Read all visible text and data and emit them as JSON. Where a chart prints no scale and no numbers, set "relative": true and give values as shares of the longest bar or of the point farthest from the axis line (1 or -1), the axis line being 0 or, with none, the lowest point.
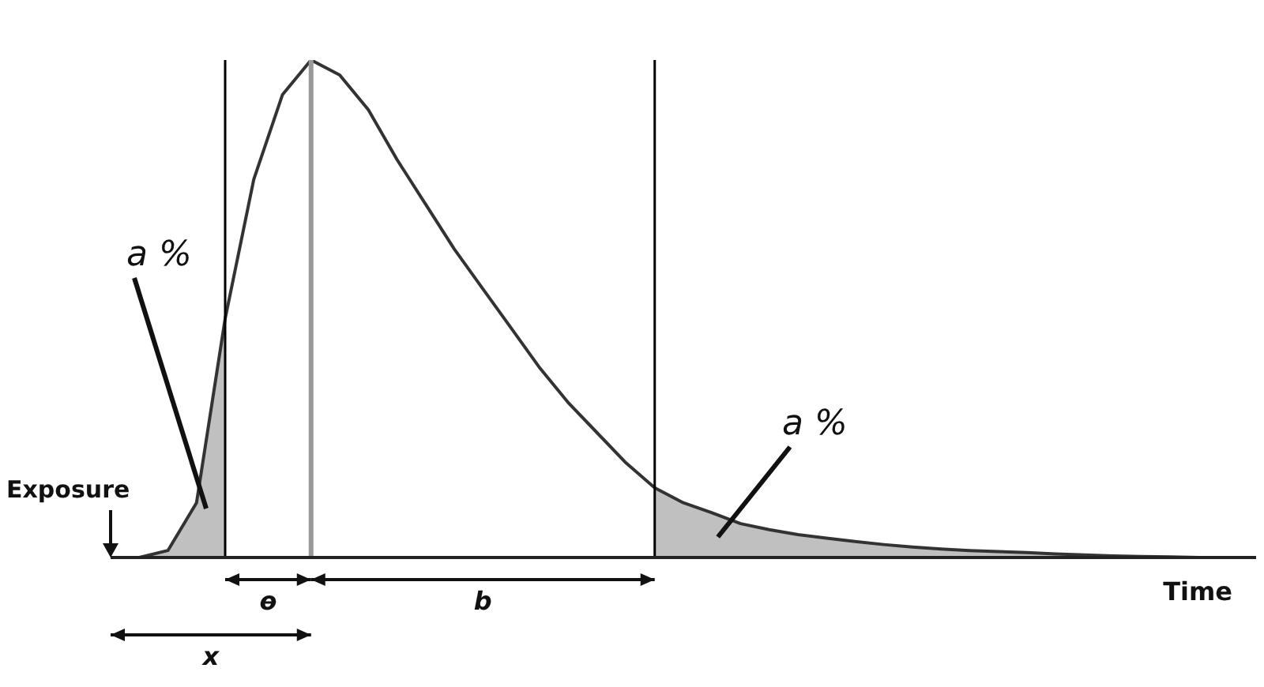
{
  "chart_data": {
    "type": "line",
    "relative": true,
    "xlabel": "Time",
    "grid": false,
    "legend": false,
    "categories": [
      null,
      null,
      null,
      null,
      null,
      null,
      null,
      null,
      null,
      null,
      null,
      null,
      null,
      null,
      null,
      null,
      null,
      null,
      null,
      null,
      null,
      null,
      null,
      null,
      null,
      null,
      null,
      null,
      null,
      null,
      null,
      null,
      null,
      null,
      null,
      null,
      null,
      null,
      null,
      null,
      null
    ],
    "series": [
      {
        "type": "line",
        "color": "#333333",
        "values": [
          0,
          0,
          0.014,
          0.11,
          0.48,
          0.76,
          0.93,
          1,
          0.97,
          0.9,
          0.8,
          0.71,
          0.62,
          0.54,
          0.46,
          0.38,
          0.31,
          0.25,
          0.19,
          0.14,
          0.11,
          0.09,
          0.068,
          0.056,
          0.046,
          0.039,
          0.032,
          0.026,
          0.021,
          0.017,
          0.014,
          0.012,
          0.01,
          0.007,
          0.005,
          0.003,
          0.002,
          0.001,
          0,
          0,
          0
        ]
      },
      {
        "type": "area",
        "color": "#c0c0c0",
        "values": [
          0,
          0,
          0.014,
          0.11,
          0.48,
          null,
          null,
          null,
          null,
          null,
          null,
          null,
          null,
          null,
          null,
          null,
          null,
          null,
          null,
          null,
          null,
          null,
          null,
          null,
          null,
          null,
          null,
          null,
          null,
          null,
          null,
          null,
          null,
          null,
          null,
          null,
          null,
          null,
          null,
          null,
          null
        ]
      },
      {
        "type": "area",
        "color": "#c0c0c0",
        "values": [
          null,
          null,
          null,
          null,
          null,
          null,
          null,
          null,
          null,
          null,
          null,
          null,
          null,
          null,
          null,
          null,
          null,
          null,
          null,
          0.14,
          0.11,
          0.09,
          0.068,
          0.056,
          0.046,
          0.039,
          0.032,
          0.026,
          0.021,
          0.017,
          0.014,
          0.012,
          0.01,
          0.007,
          0.005,
          0.003,
          0.002,
          0.001,
          0,
          0,
          0
        ]
      }
    ],
    "annotations": [
      "a %",
      "a %",
      "Exposure",
      "ɵ",
      "b",
      "x"
    ]
  }
}
